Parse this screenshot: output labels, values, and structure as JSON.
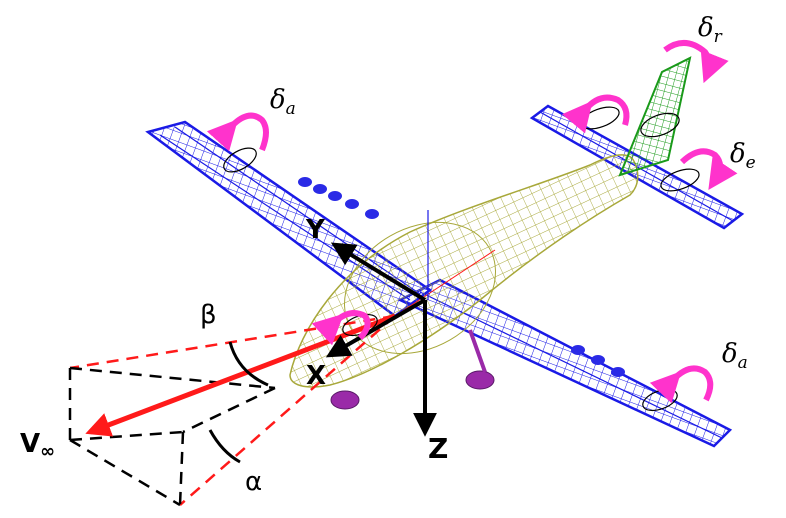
{
  "figure": {
    "axes": {
      "x": "X",
      "y": "Y",
      "z": "Z"
    },
    "velocity": "V",
    "velocity_sub": "∞",
    "angles": {
      "alpha": "α",
      "beta": "β"
    },
    "controls": [
      {
        "symbol": "δ",
        "sub": "r",
        "surface": "rudder"
      },
      {
        "symbol": "δ",
        "sub": "e",
        "surface": "elevator"
      },
      {
        "symbol": "δ",
        "sub": "a",
        "surface": "left aileron"
      },
      {
        "symbol": "δ",
        "sub": "a",
        "surface": "right aileron"
      }
    ],
    "colors": {
      "wing": "#1a1ae6",
      "fuselage": "#a8a83a",
      "fin": "#1a9a1a",
      "engine": "#9a2aa8",
      "arrow_red": "#ff1a1a",
      "rotation": "#ff33cc",
      "axis": "#000000"
    }
  }
}
